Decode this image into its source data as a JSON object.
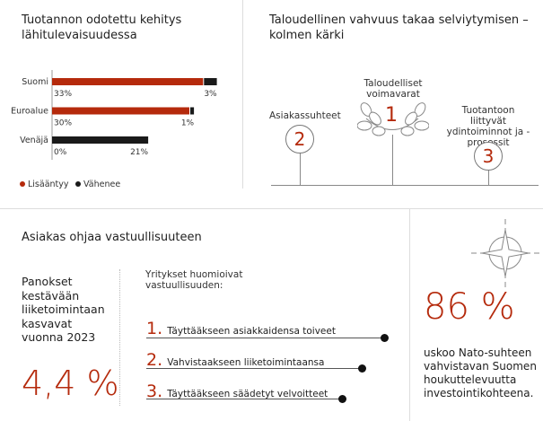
{
  "panel1": {
    "title": "Tuotannon odotettu kehitys lähitulevaisuudessa"
  },
  "chart_data": {
    "type": "bar",
    "stacked": true,
    "orientation": "horizontal",
    "categories": [
      "Suomi",
      "Euroalue",
      "Venäjä"
    ],
    "series": [
      {
        "name": "Lisääntyy",
        "values": [
          33,
          30,
          0
        ],
        "labels": [
          "33%",
          "30%",
          "0%"
        ],
        "color": "#b52a0c"
      },
      {
        "name": "Vähenee",
        "values": [
          3,
          1,
          21
        ],
        "labels": [
          "3%",
          "1%",
          "21%"
        ],
        "color": "#1a1a1a"
      }
    ],
    "legend": "bottom-left"
  },
  "panel2": {
    "title": "Taloudellinen vahvuus takaa selviytymisen – kolmen kärki",
    "items": [
      {
        "num": "1",
        "label": "Taloudelliset voimavarat"
      },
      {
        "num": "2",
        "label": "Asiakassuhteet"
      },
      {
        "num": "3",
        "label": "Tuotantoon liittyvät ydintoiminnot ja -prosessit"
      }
    ]
  },
  "panel3": {
    "title": "Asiakas ohjaa vastuullisuuteen",
    "stat_label": "Panokset kestävään liiketoimintaan kasvavat vuonna 2023",
    "stat_value": "4,4 %",
    "list_title": "Yritykset huomioivat vastuullisuuden:",
    "list": [
      {
        "num": "1.",
        "text": "Täyttääkseen asiakkaidensa toiveet"
      },
      {
        "num": "2.",
        "text": "Vahvistaakseen liiketoimintaansa"
      },
      {
        "num": "3.",
        "text": "Täyttääkseen säädetyt velvoitteet"
      }
    ]
  },
  "panel4": {
    "icon": "compass-star-icon",
    "value": "86 %",
    "text": "uskoo Nato-suhteen vahvistavan Suomen houkuttelevuutta investointikohteena."
  },
  "colors": {
    "accent": "#b52a0c",
    "dark": "#1a1a1a"
  }
}
